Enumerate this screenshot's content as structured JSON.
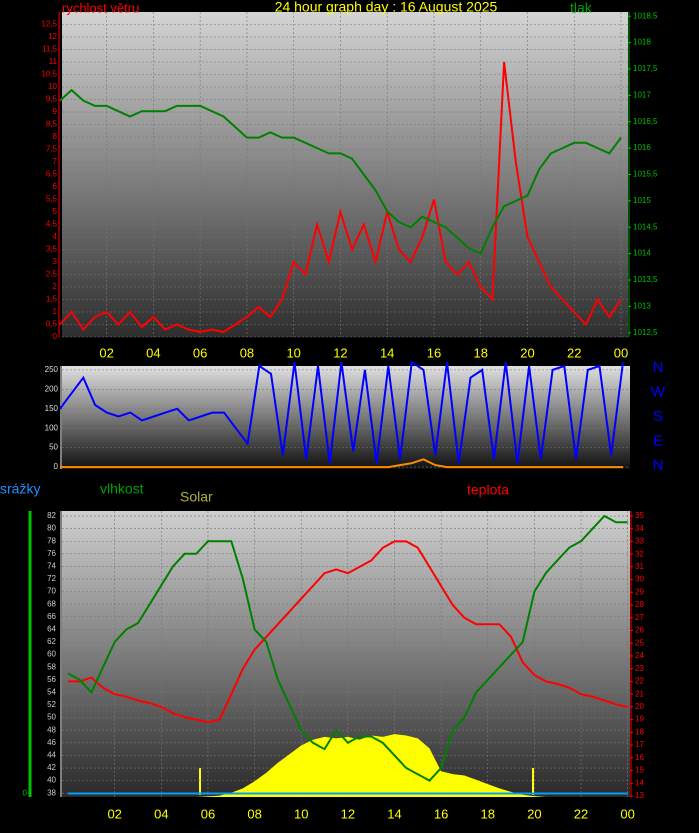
{
  "chart_data": [
    {
      "type": "line",
      "title": "24 hour graph day : 16 August 2025",
      "ylabel": "rychlost větru",
      "y2label": "tlak",
      "x": [
        0,
        0.5,
        1,
        1.5,
        2,
        2.5,
        3,
        3.5,
        4,
        4.5,
        5,
        5.5,
        6,
        6.5,
        7,
        7.5,
        8,
        8.5,
        9,
        9.5,
        10,
        10.5,
        11,
        11.5,
        12,
        12.5,
        13,
        13.5,
        14,
        14.5,
        15,
        15.5,
        16,
        16.5,
        17,
        17.5,
        18,
        18.5,
        19,
        19.5,
        20,
        20.5,
        21,
        21.5,
        22,
        22.5,
        23,
        23.5,
        24
      ],
      "xlim": [
        0.09,
        24.3
      ],
      "xticks": [
        {
          "value": 2,
          "label": "02"
        },
        {
          "value": 4,
          "label": "04"
        },
        {
          "value": 6,
          "label": "06"
        },
        {
          "value": 8,
          "label": "08"
        },
        10,
        12,
        14,
        16,
        18,
        20,
        22,
        {
          "value": 24,
          "label": "00"
        }
      ],
      "ylim": [
        0,
        13
      ],
      "yticks": [
        0,
        {
          "value": 0.5,
          "label": "0,5"
        },
        1,
        {
          "value": 1.5,
          "label": "1,5"
        },
        2,
        {
          "value": 2.5,
          "label": "2,5"
        },
        3,
        {
          "value": 3.5,
          "label": "3,5"
        },
        4,
        {
          "value": 4.5,
          "label": "4,5"
        },
        5,
        {
          "value": 5.5,
          "label": "5,5"
        },
        6,
        {
          "value": 6.5,
          "label": "6,5"
        },
        7,
        {
          "value": 7.5,
          "label": "7,5"
        },
        8,
        {
          "value": 8.5,
          "label": "8,5"
        },
        9,
        {
          "value": 9.5,
          "label": "9,5"
        },
        10,
        {
          "value": 10.5,
          "label": "10,5"
        },
        11,
        {
          "value": 11.5,
          "label": "11,5"
        },
        12,
        {
          "value": 12.5,
          "label": "12,5"
        }
      ],
      "y2lim": [
        1012.42,
        1018.58
      ],
      "y2ticks": [
        {
          "value": 1012.5,
          "label": "1012,5"
        },
        1013,
        {
          "value": 1013.5,
          "label": "1013,5"
        },
        1014,
        {
          "value": 1014.5,
          "label": "1014,5"
        },
        1015,
        {
          "value": 1015.5,
          "label": "1015,5"
        },
        1016,
        {
          "value": 1016.5,
          "label": "1016,5"
        },
        1017,
        {
          "value": 1017.5,
          "label": "1017,5"
        },
        1018,
        {
          "value": 1018.5,
          "label": "1018,5"
        }
      ],
      "grid": true,
      "series": [
        {
          "color": "#ff0000",
          "values": [
            0.5,
            1,
            0.3,
            0.8,
            1,
            0.5,
            1,
            0.4,
            0.8,
            0.3,
            0.5,
            0.3,
            0.2,
            0.3,
            0.2,
            0.5,
            0.8,
            1.2,
            0.8,
            1.5,
            3,
            2.5,
            4.5,
            3,
            5,
            3.5,
            4.5,
            3,
            5,
            3.5,
            3,
            4,
            5.5,
            3,
            2.5,
            3,
            2,
            1.5,
            11,
            7,
            4,
            3,
            2,
            1.5,
            1,
            0.5,
            1.5,
            0.8,
            1.5
          ]
        },
        {
          "color": "#008000",
          "axis": "y2",
          "values": [
            1016.9,
            1017.1,
            1016.9,
            1016.8,
            1016.8,
            1016.7,
            1016.6,
            1016.7,
            1016.7,
            1016.7,
            1016.8,
            1016.8,
            1016.8,
            1016.7,
            1016.6,
            1016.4,
            1016.2,
            1016.2,
            1016.3,
            1016.2,
            1016.2,
            1016.1,
            1016.0,
            1015.9,
            1015.9,
            1015.8,
            1015.5,
            1015.2,
            1014.8,
            1014.6,
            1014.5,
            1014.7,
            1014.6,
            1014.5,
            1014.3,
            1014.1,
            1014.0,
            1014.5,
            1014.9,
            1015.0,
            1015.1,
            1015.6,
            1015.9,
            1016.0,
            1016.1,
            1016.1,
            1016.0,
            1015.9,
            1016.2
          ]
        }
      ]
    },
    {
      "type": "line",
      "compass": [
        "N",
        "W",
        "S",
        "E",
        "N"
      ],
      "x": [
        0,
        0.5,
        1,
        1.5,
        2,
        2.5,
        3,
        3.5,
        4,
        4.5,
        5,
        5.5,
        6,
        6.5,
        7,
        7.5,
        8,
        8.5,
        9,
        9.5,
        10,
        10.5,
        11,
        11.5,
        12,
        12.5,
        13,
        13.5,
        14,
        14.5,
        15,
        15.5,
        16,
        16.5,
        17,
        17.5,
        18,
        18.5,
        19,
        19.5,
        20,
        20.5,
        21,
        21.5,
        22,
        22.5,
        23,
        23.5,
        24
      ],
      "xlim": [
        0.09,
        24.3
      ],
      "ylim": [
        -5,
        260
      ],
      "yticks": [
        0,
        50,
        100,
        150,
        200,
        250
      ],
      "grid": true,
      "series": [
        {
          "color": "#0000ff",
          "values": [
            150,
            190,
            230,
            160,
            140,
            130,
            140,
            120,
            130,
            140,
            150,
            120,
            130,
            140,
            140,
            100,
            60,
            260,
            240,
            30,
            270,
            20,
            260,
            10,
            270,
            40,
            250,
            10,
            260,
            20,
            270,
            250,
            30,
            270,
            10,
            230,
            250,
            20,
            270,
            10,
            260,
            20,
            250,
            260,
            20,
            250,
            260,
            30,
            270
          ]
        },
        {
          "color": "#ff8c00",
          "values": [
            0,
            0,
            0,
            0,
            0,
            0,
            0,
            0,
            0,
            0,
            0,
            0,
            0,
            0,
            0,
            0,
            0,
            0,
            0,
            0,
            0,
            0,
            0,
            0,
            0,
            0,
            0,
            0,
            0,
            5,
            10,
            20,
            5,
            0,
            0,
            0,
            0,
            0,
            0,
            0,
            0,
            0,
            0,
            0,
            0,
            0,
            0,
            0,
            0
          ]
        }
      ]
    },
    {
      "type": "line",
      "ylabel": "vlhkost",
      "y2label": "teplota",
      "y3label": "srážky",
      "x": [
        0,
        0.5,
        1,
        1.5,
        2,
        2.5,
        3,
        3.5,
        4,
        4.5,
        5,
        5.5,
        6,
        6.5,
        7,
        7.5,
        8,
        8.5,
        9,
        9.5,
        10,
        10.5,
        11,
        11.5,
        12,
        12.5,
        13,
        13.5,
        14,
        14.5,
        15,
        15.5,
        16,
        16.5,
        17,
        17.5,
        18,
        18.5,
        19,
        19.5,
        20,
        20.5,
        21,
        21.5,
        22,
        22.5,
        23,
        23.5,
        24
      ],
      "xlim": [
        -0.26,
        24.1
      ],
      "xticks": [
        {
          "value": 2,
          "label": "02"
        },
        {
          "value": 4,
          "label": "04"
        },
        {
          "value": 6,
          "label": "06"
        },
        {
          "value": 8,
          "label": "08"
        },
        10,
        12,
        14,
        16,
        18,
        20,
        22,
        {
          "value": 24,
          "label": "00"
        }
      ],
      "ylim": [
        37.4,
        82.8
      ],
      "yticks": [
        38,
        40,
        42,
        44,
        46,
        48,
        50,
        52,
        54,
        56,
        58,
        60,
        62,
        64,
        66,
        68,
        70,
        72,
        74,
        76,
        78,
        80,
        82
      ],
      "y2lim": [
        12.92,
        35.39
      ],
      "y2ticks": [
        13,
        14,
        15,
        16,
        17,
        18,
        19,
        20,
        21,
        22,
        23,
        24,
        25,
        26,
        27,
        28,
        29,
        30,
        31,
        32,
        33,
        34,
        35
      ],
      "y3lim": [
        -0.05,
        4
      ],
      "y3ticks": [
        0
      ],
      "y4lim": [
        0,
        1000
      ],
      "grid": true,
      "series": [
        {
          "name": "Solar",
          "color": "#ffff00",
          "axis": "y4",
          "fill": true,
          "values": [
            0,
            0,
            0,
            0,
            0,
            0,
            0,
            0,
            0,
            0,
            0,
            0,
            2,
            5,
            15,
            30,
            55,
            85,
            120,
            150,
            180,
            200,
            210,
            205,
            210,
            200,
            215,
            210,
            220,
            215,
            205,
            170,
            90,
            80,
            75,
            60,
            45,
            30,
            18,
            8,
            3,
            0,
            0,
            0,
            0,
            0,
            0,
            0,
            0
          ]
        },
        {
          "color": "#00a0ff",
          "axis": "y3",
          "values": [
            0,
            0,
            0,
            0,
            0,
            0,
            0,
            0,
            0,
            0,
            0,
            0,
            0,
            0,
            0,
            0,
            0,
            0,
            0,
            0,
            0,
            0,
            0,
            0,
            0,
            0,
            0,
            0,
            0,
            0,
            0,
            0,
            0,
            0,
            0,
            0,
            0,
            0,
            0,
            0,
            0,
            0,
            0,
            0,
            0,
            0,
            0,
            0,
            0
          ]
        },
        {
          "color": "#ff0000",
          "axis": "y2",
          "values": [
            22,
            22,
            22.3,
            21.5,
            21,
            20.8,
            20.5,
            20.3,
            20,
            19.5,
            19.2,
            19,
            18.8,
            19,
            21,
            23,
            24.5,
            25.5,
            26.5,
            27.5,
            28.5,
            29.5,
            30.5,
            30.8,
            30.5,
            31,
            31.5,
            32.5,
            33,
            33,
            32.5,
            31,
            29.5,
            28,
            27,
            26.5,
            26.5,
            26.5,
            25.5,
            23.5,
            22.5,
            22,
            21.8,
            21.5,
            21,
            20.8,
            20.5,
            20.2,
            20
          ]
        },
        {
          "color": "#008000",
          "values": [
            57,
            56,
            54,
            58,
            62,
            64,
            65,
            68,
            71,
            74,
            76,
            76,
            78,
            78,
            78,
            72,
            64,
            62,
            56,
            52,
            48,
            46,
            45,
            48,
            46,
            47,
            47,
            46,
            44,
            42,
            41,
            40,
            42,
            48,
            50,
            54,
            56,
            58,
            60,
            62,
            70,
            73,
            75,
            77,
            78,
            80,
            82,
            81,
            81
          ]
        }
      ]
    }
  ]
}
